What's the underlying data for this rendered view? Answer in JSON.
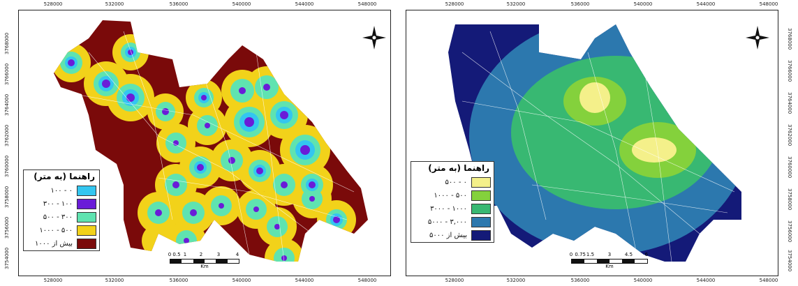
{
  "maps": [
    {
      "x_ticks": [
        "528000",
        "532000",
        "536000",
        "540000",
        "544000",
        "548000"
      ],
      "y_ticks": [
        "3768000",
        "3766000",
        "3764000",
        "3762000",
        "3760000",
        "3758000",
        "3756000",
        "3754000"
      ],
      "legend": {
        "title": "راهنما (به متر)",
        "items": [
          {
            "label": "۰ - ۱۰۰",
            "color": "#33c6f0"
          },
          {
            "label": "۱۰۰ - ۳۰۰",
            "color": "#6a1cd8"
          },
          {
            "label": "۳۰۰ - ۵۰۰",
            "color": "#5fe3b0"
          },
          {
            "label": "۵۰۰ - ۱۰۰۰",
            "color": "#f2d21a"
          },
          {
            "label": "بیش از ۱۰۰۰",
            "color": "#7a0a0a"
          }
        ]
      },
      "scale": {
        "ticks": [
          "0",
          "0.5",
          "1",
          "2",
          "3",
          "4"
        ],
        "unit": "Km"
      }
    },
    {
      "x_ticks": [
        "528000",
        "532000",
        "536000",
        "540000",
        "544000",
        "548000"
      ],
      "y_ticks": [
        "3768000",
        "3766000",
        "3764000",
        "3762000",
        "3760000",
        "3758000",
        "3756000",
        "3754000"
      ],
      "legend": {
        "title": "راهنما (به متر)",
        "items": [
          {
            "label": "۰ - ۵۰۰",
            "color": "#f4f08a"
          },
          {
            "label": "۵۰۰ - ۱۰۰۰",
            "color": "#84d13c"
          },
          {
            "label": "۱۰۰۰ - ۳۰۰۰",
            "color": "#38b872"
          },
          {
            "label": "۳,۰۰۰ - ۵۰۰۰",
            "color": "#2c78ae"
          },
          {
            "label": "بیش از ۵۰۰۰",
            "color": "#141a78"
          }
        ]
      },
      "scale": {
        "ticks": [
          "0",
          "0.75",
          "1.5",
          "3",
          "4.5",
          "6"
        ],
        "unit": "Km"
      }
    }
  ]
}
